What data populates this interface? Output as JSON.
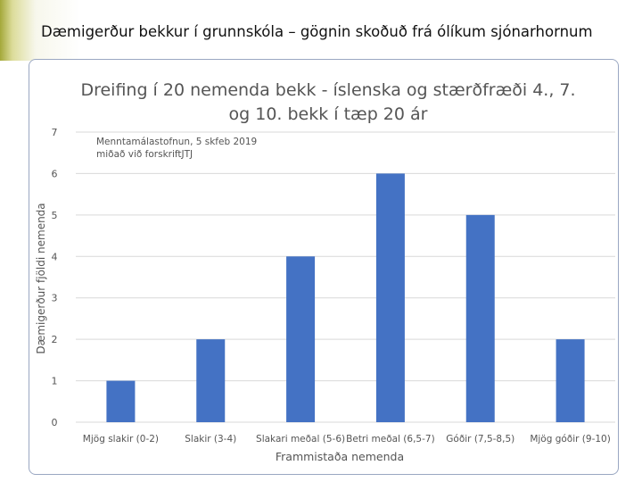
{
  "slide": {
    "title": "Dæmigerður bekkur í grunnskóla – gögnin skoðuð frá ólíkum sjónarhornum"
  },
  "chart_data": {
    "type": "bar",
    "title_line1": "Dreifing í 20 nemenda bekk - íslenska og stærðfræði 4., 7.",
    "title_line2": "og 10. bekk í tæp 20 ár",
    "annotation_line1": "Menntamálastofnun, 5 skfeb 2019",
    "annotation_line2": "miðað við forskriftJTJ",
    "xlabel": "Frammistaða nemenda",
    "ylabel": "Dæmigerður fjöldi nemenda",
    "ylim": [
      0,
      7
    ],
    "yticks": [
      "0",
      "1",
      "2",
      "3",
      "4",
      "5",
      "6",
      "7"
    ],
    "categories": [
      "Mjög slakir (0-2)",
      "Slakir (3-4)",
      "Slakari meðal (5-6)",
      "Betri meðal (6,5-7)",
      "Góðir (7,5-8,5)",
      "Mjög góðir (9-10)"
    ],
    "values": [
      1,
      2,
      4,
      6,
      5,
      2
    ],
    "bar_color": "#4472c4",
    "grid": true,
    "legend": "none"
  }
}
